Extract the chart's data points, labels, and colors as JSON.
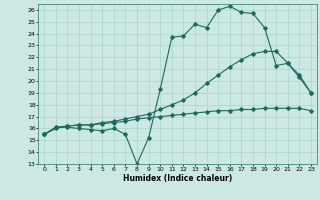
{
  "title": "",
  "xlabel": "Humidex (Indice chaleur)",
  "bg_color": "#cce8e4",
  "grid_color": "#aad4cc",
  "line_color": "#1a6b5a",
  "xlim": [
    -0.5,
    23.5
  ],
  "ylim": [
    13,
    26.5
  ],
  "yticks": [
    13,
    14,
    15,
    16,
    17,
    18,
    19,
    20,
    21,
    22,
    23,
    24,
    25,
    26
  ],
  "xticks": [
    0,
    1,
    2,
    3,
    4,
    5,
    6,
    7,
    8,
    9,
    10,
    11,
    12,
    13,
    14,
    15,
    16,
    17,
    18,
    19,
    20,
    21,
    22,
    23
  ],
  "line1_x": [
    0,
    1,
    2,
    3,
    4,
    5,
    6,
    7,
    8,
    9,
    10,
    11,
    12,
    13,
    14,
    15,
    16,
    17,
    18,
    19,
    20,
    21,
    22,
    23
  ],
  "line1_y": [
    15.5,
    16.1,
    16.1,
    16.0,
    15.9,
    15.8,
    16.0,
    15.5,
    13.0,
    15.2,
    19.3,
    23.7,
    23.8,
    24.8,
    24.5,
    26.0,
    26.3,
    25.8,
    25.7,
    24.5,
    21.3,
    21.5,
    20.5,
    19.0
  ],
  "line2_x": [
    0,
    1,
    2,
    3,
    4,
    5,
    6,
    7,
    8,
    9,
    10,
    11,
    12,
    13,
    14,
    15,
    16,
    17,
    18,
    19,
    20,
    21,
    22,
    23
  ],
  "line2_y": [
    15.5,
    16.1,
    16.2,
    16.3,
    16.3,
    16.5,
    16.6,
    16.8,
    17.0,
    17.2,
    17.6,
    18.0,
    18.4,
    19.0,
    19.8,
    20.5,
    21.2,
    21.8,
    22.3,
    22.5,
    22.5,
    21.5,
    20.3,
    19.0
  ],
  "line3_x": [
    0,
    1,
    2,
    3,
    4,
    5,
    6,
    7,
    8,
    9,
    10,
    11,
    12,
    13,
    14,
    15,
    16,
    17,
    18,
    19,
    20,
    21,
    22,
    23
  ],
  "line3_y": [
    15.5,
    16.0,
    16.2,
    16.3,
    16.3,
    16.4,
    16.5,
    16.6,
    16.8,
    16.9,
    17.0,
    17.1,
    17.2,
    17.3,
    17.4,
    17.5,
    17.5,
    17.6,
    17.6,
    17.7,
    17.7,
    17.7,
    17.7,
    17.5
  ]
}
